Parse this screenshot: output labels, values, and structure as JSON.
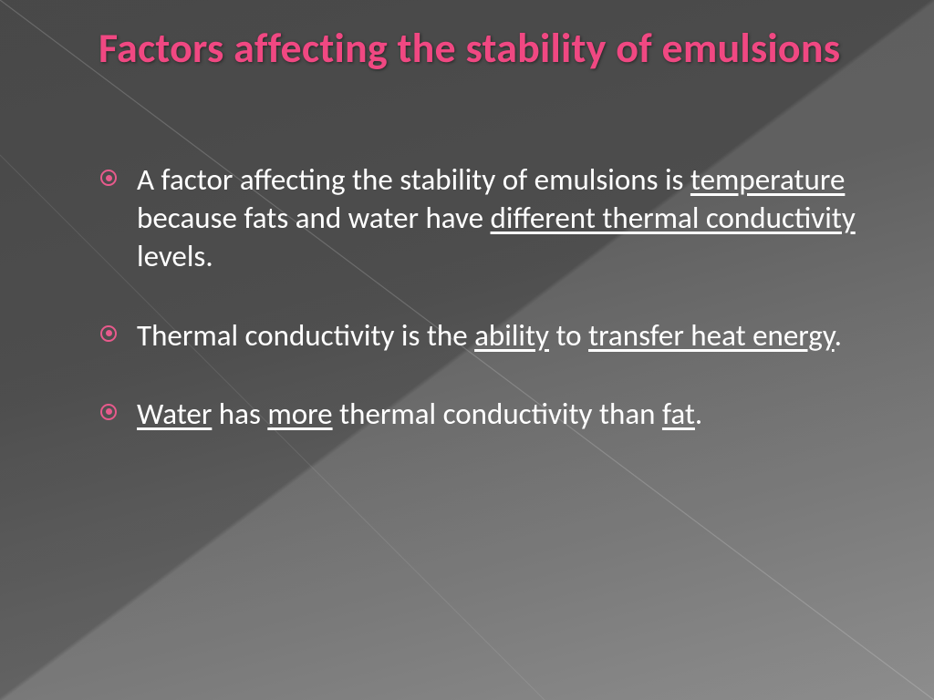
{
  "colors": {
    "title": "#f04882",
    "bullet_marker": "#e85a8c",
    "body_text": "#ffffff",
    "bg_dark": "#555555",
    "bg_light": "#888888"
  },
  "typography": {
    "title_fontsize": 46,
    "title_weight": 700,
    "body_fontsize": 33,
    "body_weight": 300,
    "font_family": "Calibri"
  },
  "title": "Factors affecting the stability of emulsions",
  "bullets": [
    {
      "segments": [
        {
          "text": "A factor affecting the stability of emulsions is ",
          "u": false
        },
        {
          "text": "temperature",
          "u": true
        },
        {
          "text": " because fats and water have ",
          "u": false
        },
        {
          "text": "different thermal conductivity",
          "u": true
        },
        {
          "text": " levels.",
          "u": false
        }
      ]
    },
    {
      "segments": [
        {
          "text": "Thermal conductivity is the ",
          "u": false
        },
        {
          "text": "ability",
          "u": true
        },
        {
          "text": " to ",
          "u": false
        },
        {
          "text": "transfer heat energy",
          "u": true
        },
        {
          "text": ".",
          "u": false
        }
      ]
    },
    {
      "segments": [
        {
          "text": "Water",
          "u": true
        },
        {
          "text": " has ",
          "u": false
        },
        {
          "text": "more",
          "u": true
        },
        {
          "text": " thermal conductivity than ",
          "u": false
        },
        {
          "text": "fat",
          "u": true
        },
        {
          "text": ".",
          "u": false
        }
      ]
    }
  ]
}
